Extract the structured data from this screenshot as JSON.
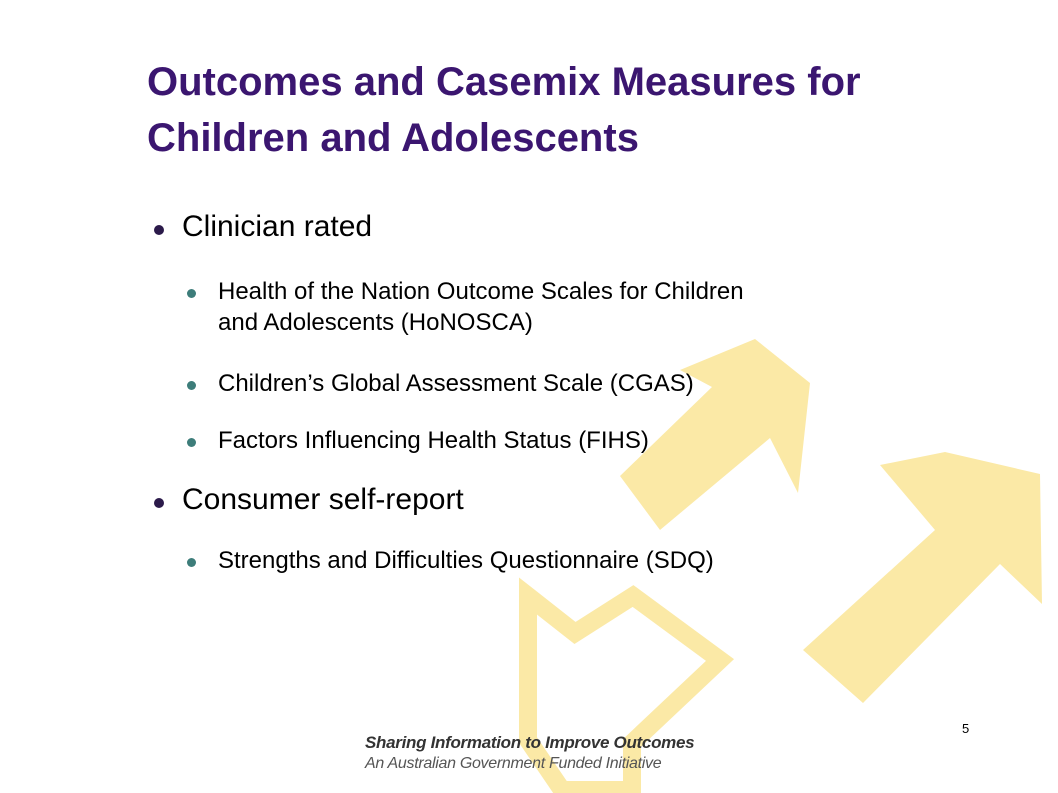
{
  "slide": {
    "title_lines": [
      "Outcomes and Casemix Measures for",
      "Children and Adolescents"
    ],
    "bullets": [
      {
        "label": "Clinician rated",
        "sub": [
          {
            "lines": [
              "Health of the Nation Outcome Scales for Children",
              "and Adolescents (HoNOSCA)"
            ]
          },
          {
            "lines": [
              "Children’s Global Assessment Scale (CGAS)"
            ]
          },
          {
            "lines": [
              "Factors Influencing Health Status (FIHS)"
            ]
          }
        ]
      },
      {
        "label": "Consumer self-report",
        "sub": [
          {
            "lines": [
              "Strengths and Difficulties Questionnaire (SDQ)"
            ]
          }
        ]
      }
    ],
    "page_number": "5",
    "footer": {
      "line1": "Sharing Information to Improve Outcomes",
      "line2": "An Australian Government Funded Initiative"
    }
  },
  "colors": {
    "title": "#3b1670",
    "arrow_fill": "#fbe9a6",
    "bullet_level1": "#2b1a4a",
    "bullet_level2": "#3d7d7a"
  }
}
